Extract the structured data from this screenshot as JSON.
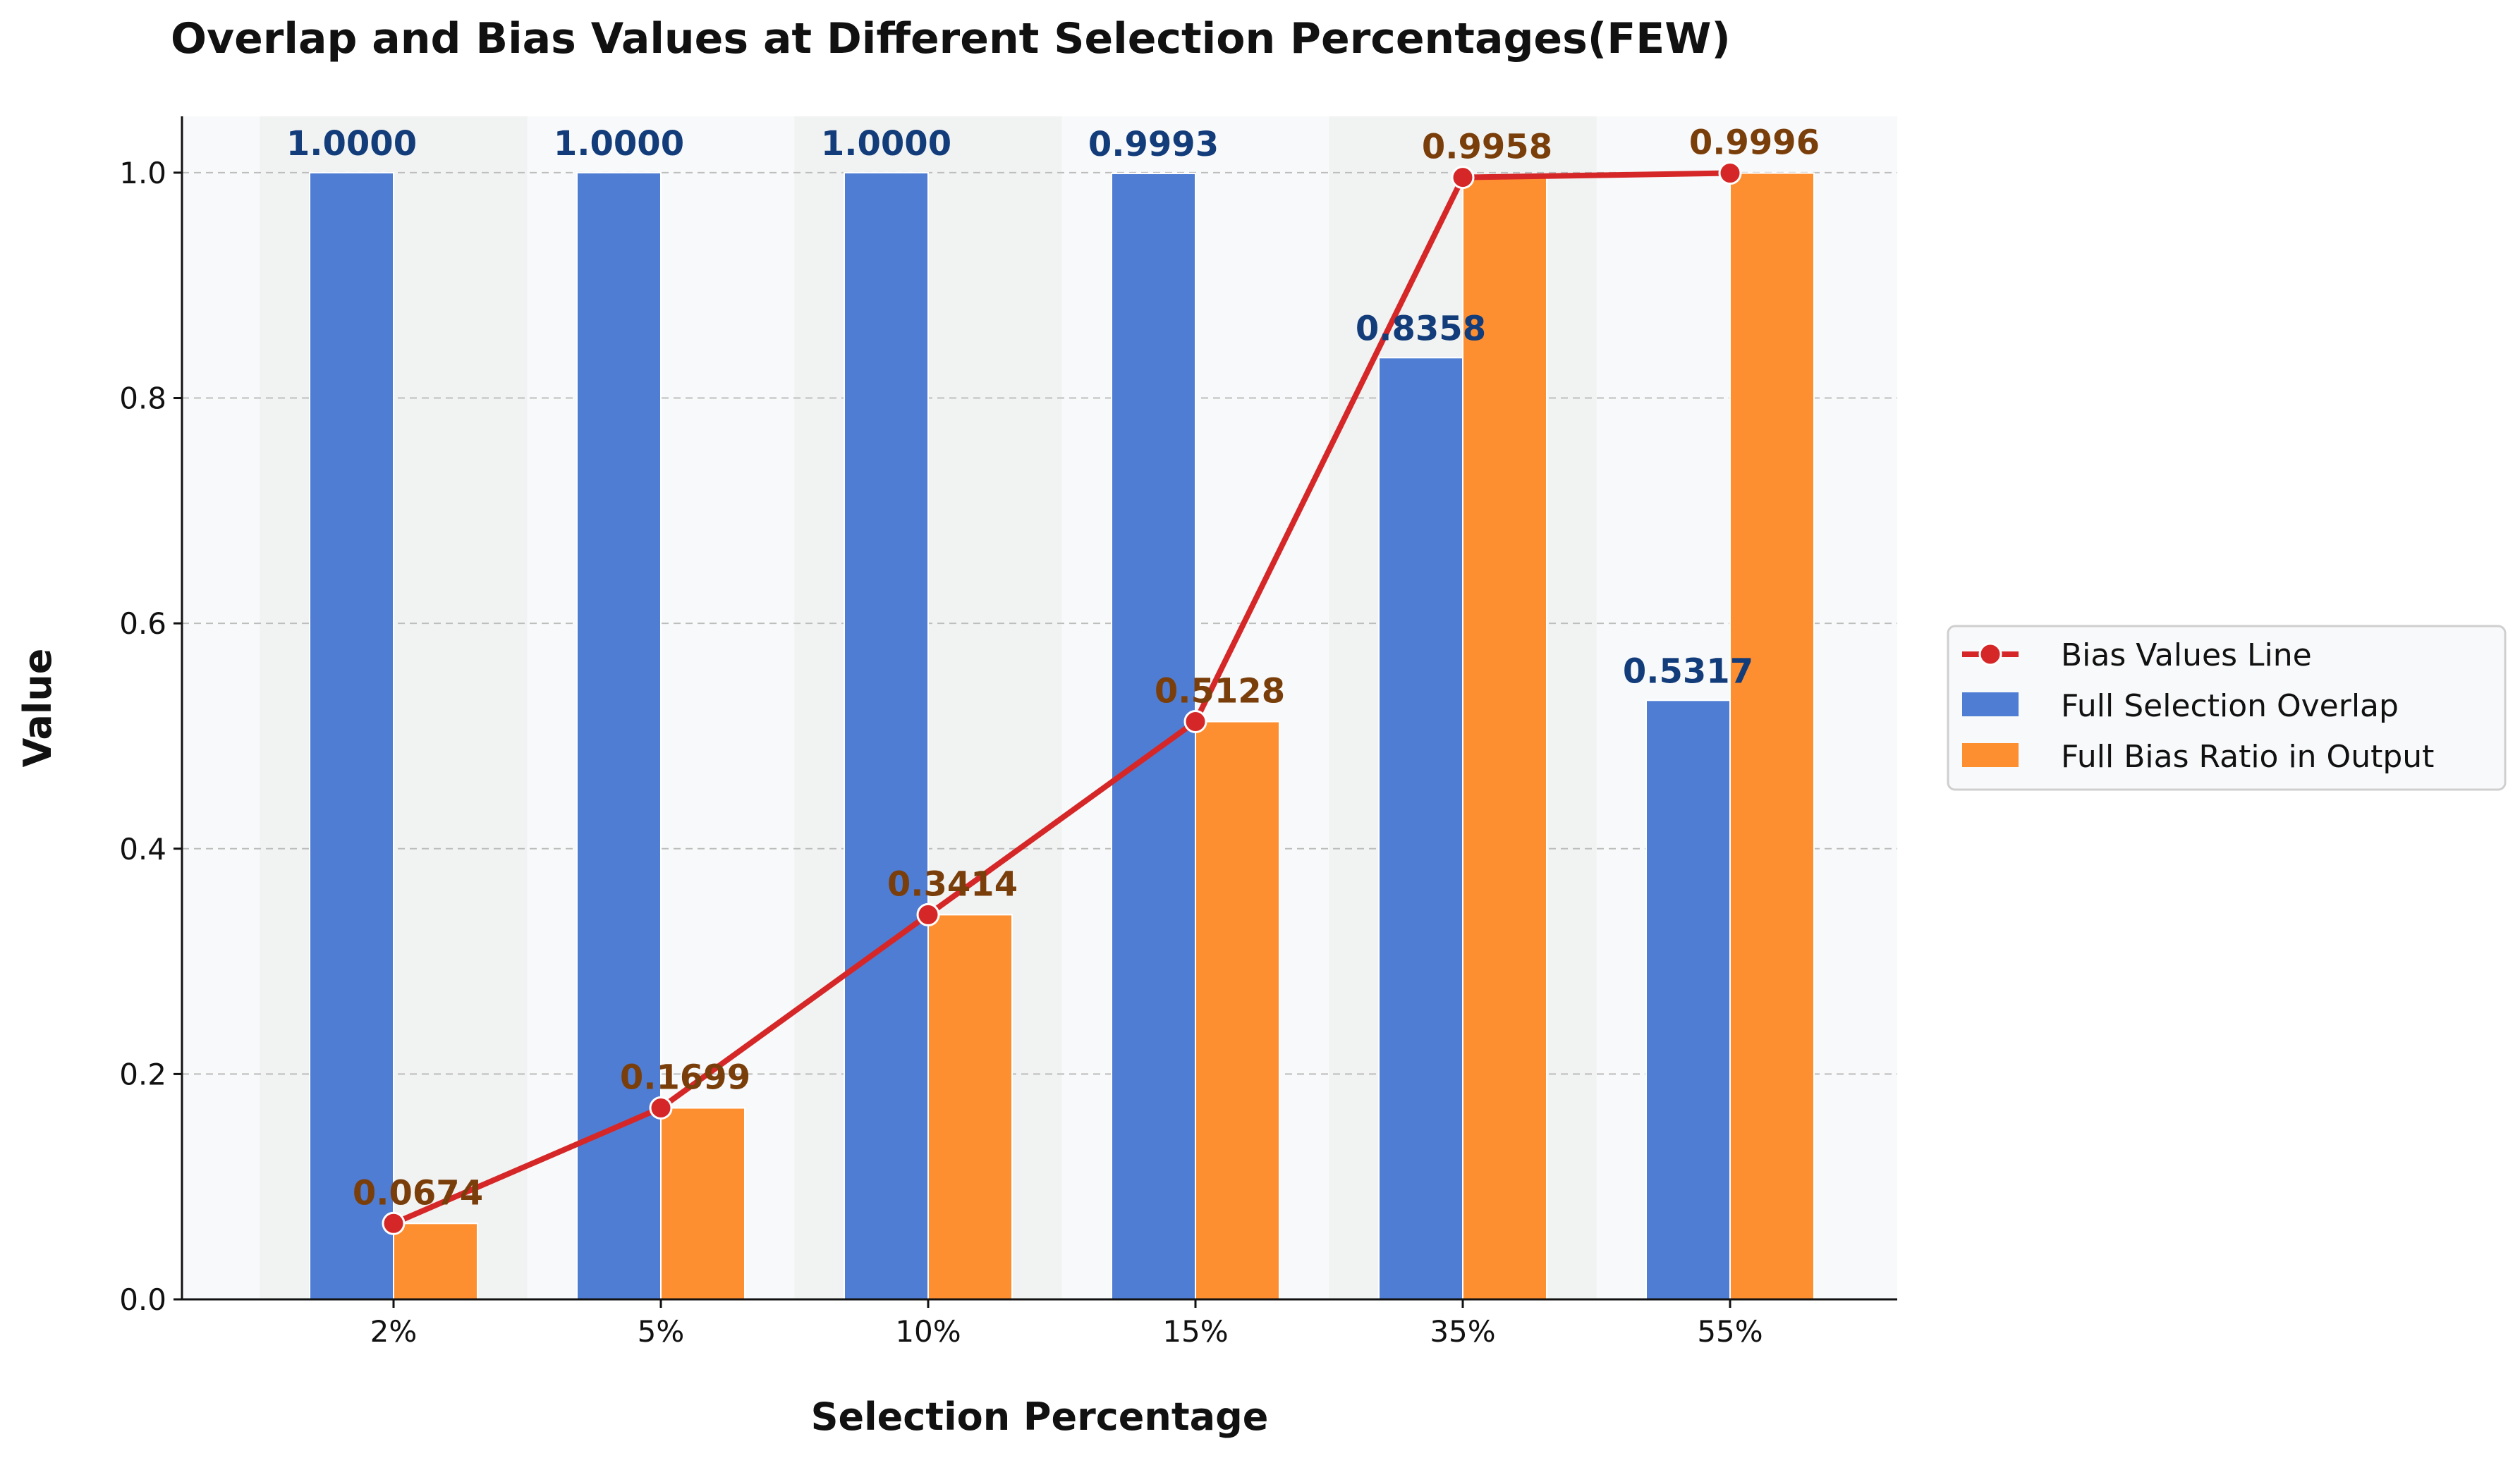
{
  "chart_data": {
    "type": "bar",
    "title": "Overlap and Bias Values at Different Selection Percentages(FEW)",
    "xlabel": "Selection Percentage",
    "ylabel": "Value",
    "categories": [
      "2%",
      "5%",
      "10%",
      "15%",
      "35%",
      "55%"
    ],
    "ylim": [
      0,
      1.05
    ],
    "yticks": [
      "0.0",
      "0.2",
      "0.4",
      "0.6",
      "0.8",
      "1.0"
    ],
    "grid": "horizontal dashed",
    "legend_position": "right",
    "series": [
      {
        "name": "Full Selection Overlap",
        "kind": "bar",
        "color": "#4f7dd3",
        "label_color": "#123c7a",
        "values": [
          1.0,
          1.0,
          1.0,
          0.9993,
          0.8358,
          0.5317
        ],
        "labels": [
          "1.0000",
          "1.0000",
          "1.0000",
          "0.9993",
          "0.8358",
          "0.5317"
        ]
      },
      {
        "name": "Full Bias Ratio in Output",
        "kind": "bar",
        "color": "#fd8f31",
        "label_color": "#7a3e0b",
        "values": [
          0.0674,
          0.1699,
          0.3414,
          0.5128,
          0.9958,
          0.9996
        ],
        "labels": [
          "0.0674",
          "0.1699",
          "0.3414",
          "0.5128",
          "0.9958",
          "0.9996"
        ]
      },
      {
        "name": "Bias Values Line",
        "kind": "line",
        "color": "#d62728",
        "values": [
          0.0674,
          0.1699,
          0.3414,
          0.5128,
          0.9958,
          0.9996
        ]
      }
    ]
  }
}
